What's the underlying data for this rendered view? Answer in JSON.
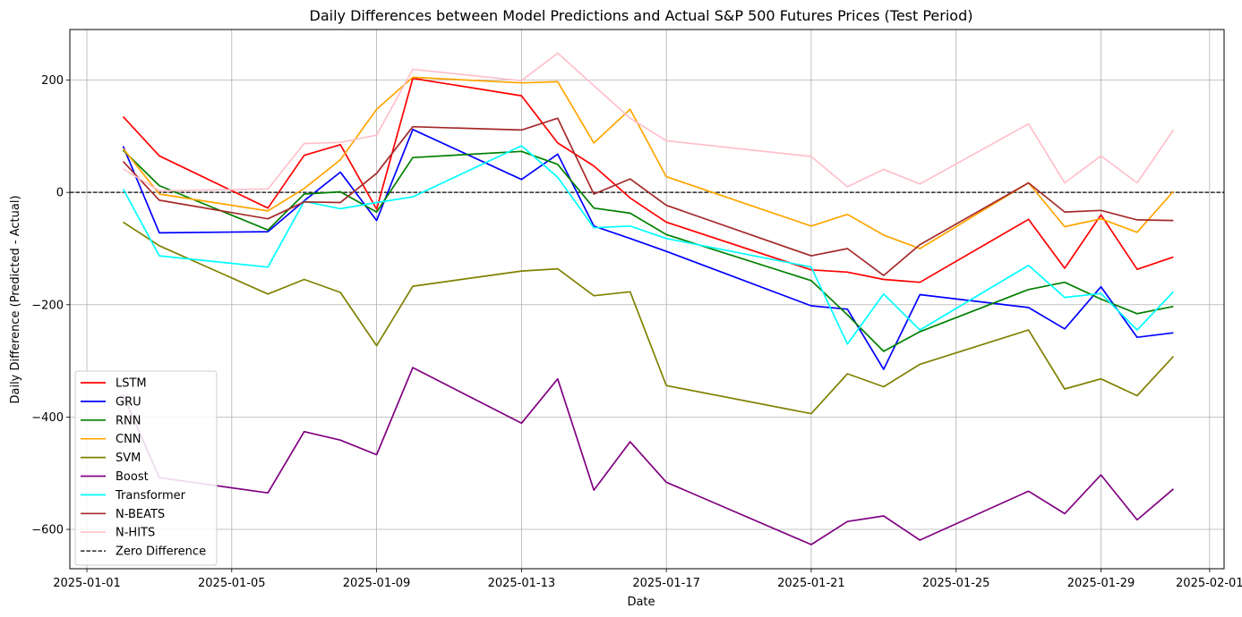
{
  "chart_data": {
    "type": "line",
    "title": "Daily Differences between Model Predictions and Actual S&P 500 Futures Prices (Test Period)",
    "xlabel": "Date",
    "ylabel": "Daily Difference (Predicted - Actual)",
    "x_tick_labels": [
      "2025-01-01",
      "2025-01-05",
      "2025-01-09",
      "2025-01-13",
      "2025-01-17",
      "2025-01-21",
      "2025-01-25",
      "2025-01-29",
      "2025-02-01"
    ],
    "y_ticks": [
      200,
      0,
      -200,
      -400,
      -600
    ],
    "xlim": [
      "2025-01-01",
      "2025-02-01"
    ],
    "ylim": [
      -670,
      290
    ],
    "grid": true,
    "legend_position": "lower-left",
    "x": [
      "2025-01-02",
      "2025-01-03",
      "2025-01-06",
      "2025-01-07",
      "2025-01-08",
      "2025-01-09",
      "2025-01-10",
      "2025-01-13",
      "2025-01-14",
      "2025-01-15",
      "2025-01-16",
      "2025-01-17",
      "2025-01-21",
      "2025-01-22",
      "2025-01-23",
      "2025-01-24",
      "2025-01-27",
      "2025-01-28",
      "2025-01-29",
      "2025-01-30",
      "2025-01-31"
    ],
    "series": [
      {
        "name": "LSTM",
        "color": "#ff0000",
        "values": [
          135,
          65,
          -28,
          66,
          85,
          -30,
          203,
          172,
          88,
          47,
          -10,
          -53,
          -138,
          -142,
          -155,
          -160,
          -48,
          -135,
          -40,
          -137,
          -115
        ]
      },
      {
        "name": "GRU",
        "color": "#0000ff",
        "values": [
          82,
          -72,
          -70,
          -15,
          36,
          -50,
          112,
          23,
          68,
          -60,
          -82,
          -105,
          -202,
          -208,
          -315,
          -182,
          -205,
          -243,
          -168,
          -258,
          -250
        ]
      },
      {
        "name": "RNN",
        "color": "#008000",
        "values": [
          75,
          12,
          -67,
          -3,
          1,
          -35,
          62,
          73,
          50,
          -28,
          -37,
          -75,
          -157,
          -218,
          -283,
          -248,
          -173,
          -160,
          -190,
          -216,
          -203
        ]
      },
      {
        "name": "CNN",
        "color": "#ffa500",
        "values": [
          78,
          -3,
          -33,
          7,
          58,
          148,
          205,
          195,
          197,
          88,
          148,
          28,
          -60,
          -39,
          -76,
          -100,
          17,
          -61,
          -47,
          -71,
          2
        ]
      },
      {
        "name": "SVM",
        "color": "#808000",
        "values": [
          -53,
          -95,
          -181,
          -155,
          -178,
          -273,
          -167,
          -140,
          -136,
          -184,
          -177,
          -344,
          -394,
          -323,
          -346,
          -306,
          -245,
          -350,
          -332,
          -362,
          -292
        ]
      },
      {
        "name": "Boost",
        "color": "#800080",
        "values": [
          -360,
          -508,
          -535,
          -426,
          -441,
          -467,
          -312,
          -411,
          -332,
          -530,
          -444,
          -516,
          -627,
          -586,
          -576,
          -619,
          -532,
          -572,
          -503,
          -583,
          -528
        ]
      },
      {
        "name": "Transformer",
        "color": "#00ffff",
        "values": [
          6,
          -113,
          -133,
          -16,
          -29,
          -18,
          -8,
          83,
          27,
          -63,
          -60,
          -82,
          -133,
          -270,
          -181,
          -245,
          -130,
          -187,
          -180,
          -245,
          -177
        ]
      },
      {
        "name": "N-BEATS",
        "color": "#a52a2a",
        "values": [
          55,
          -14,
          -47,
          -17,
          -18,
          34,
          117,
          111,
          132,
          -3,
          24,
          -23,
          -113,
          -100,
          -148,
          -93,
          17,
          -35,
          -32,
          -49,
          -50
        ]
      },
      {
        "name": "N-HITS",
        "color": "#ffc0cb",
        "values": [
          42,
          3,
          6,
          87,
          89,
          102,
          219,
          199,
          248,
          190,
          132,
          92,
          64,
          10,
          41,
          15,
          122,
          17,
          65,
          17,
          111
        ]
      }
    ],
    "reference_line": {
      "name": "Zero Difference",
      "value": 0,
      "color": "#000000",
      "style": "dashed"
    }
  }
}
